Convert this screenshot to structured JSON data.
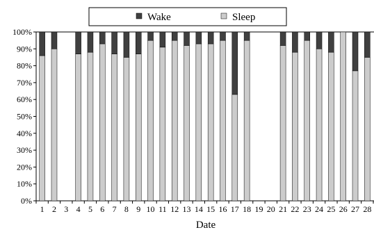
{
  "chart_data": {
    "type": "bar",
    "stacked": true,
    "percent": true,
    "title": "",
    "xlabel": "Date",
    "ylabel": "",
    "ylim": [
      0,
      100
    ],
    "yticks": [
      "0%",
      "10%",
      "20%",
      "30%",
      "40%",
      "50%",
      "60%",
      "70%",
      "80%",
      "90%",
      "100%"
    ],
    "categories": [
      "1",
      "2",
      "3",
      "4",
      "5",
      "6",
      "7",
      "8",
      "9",
      "10",
      "11",
      "12",
      "13",
      "14",
      "15",
      "16",
      "17",
      "18",
      "19",
      "20",
      "21",
      "22",
      "23",
      "24",
      "25",
      "26",
      "27",
      "28"
    ],
    "series": [
      {
        "name": "Sleep",
        "color": "#cccccc",
        "values": [
          86,
          90,
          null,
          87,
          88,
          93,
          87,
          85,
          87,
          95,
          91,
          95,
          92,
          93,
          93,
          95,
          63,
          95,
          null,
          null,
          92,
          88,
          95,
          90,
          88,
          100,
          77,
          85
        ]
      },
      {
        "name": "Wake",
        "color": "#404040",
        "values": [
          14,
          10,
          null,
          13,
          12,
          7,
          13,
          15,
          13,
          5,
          9,
          5,
          8,
          7,
          7,
          5,
          37,
          5,
          null,
          null,
          8,
          12,
          5,
          10,
          12,
          0,
          23,
          15
        ]
      }
    ],
    "legend": {
      "placement": "top",
      "order": [
        "Wake",
        "Sleep"
      ]
    },
    "grid": false
  }
}
